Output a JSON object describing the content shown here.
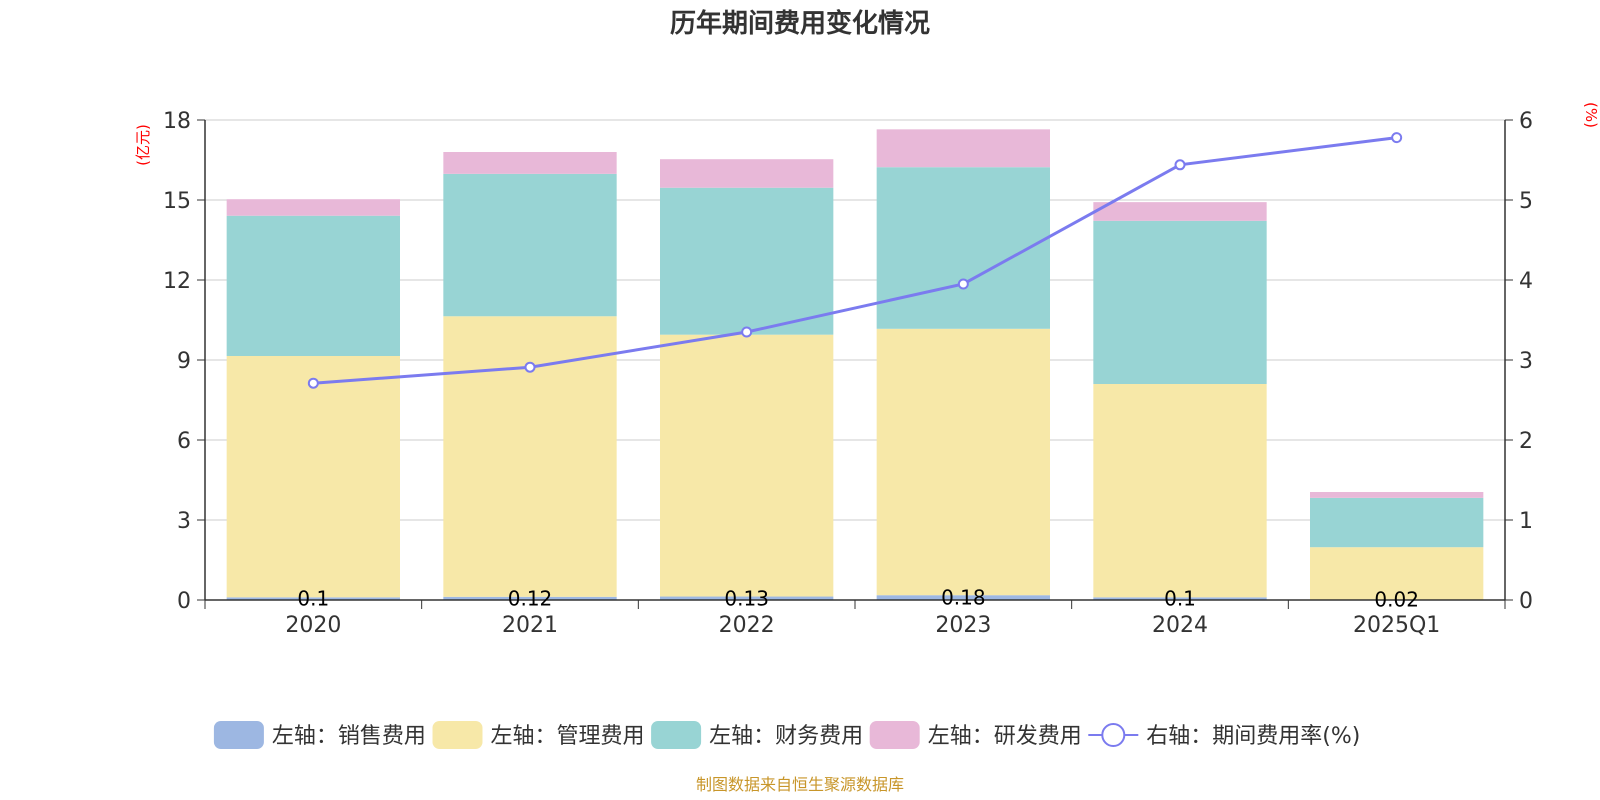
{
  "chart_data": {
    "type": "bar",
    "stacked": true,
    "title": "历年期间费用变化情况",
    "categories": [
      "2020",
      "2021",
      "2022",
      "2023",
      "2024",
      "2025Q1"
    ],
    "left_axis": {
      "unit": "(亿元)",
      "ylim": [
        0,
        18
      ],
      "ticks": [
        "0",
        "3",
        "6",
        "9",
        "12",
        "15",
        "18"
      ]
    },
    "right_axis": {
      "unit": "(%)",
      "ylim": [
        0,
        6
      ],
      "ticks": [
        "0",
        "1",
        "2",
        "3",
        "4",
        "5",
        "6"
      ]
    },
    "series": [
      {
        "name": "左轴：销售费用",
        "axis": "left",
        "color": "#9db7e2",
        "values": [
          0.1,
          0.12,
          0.13,
          0.18,
          0.1,
          0.02
        ],
        "labels": [
          "0.1",
          "0.12",
          "0.13",
          "0.18",
          "0.1",
          "0.02"
        ]
      },
      {
        "name": "左轴：管理费用",
        "axis": "left",
        "color": "#f7e8a8",
        "values": [
          9.05,
          10.52,
          9.82,
          9.99,
          8.0,
          1.96
        ]
      },
      {
        "name": "左轴：财务费用",
        "axis": "left",
        "color": "#98d4d4",
        "values": [
          5.26,
          5.34,
          5.51,
          6.06,
          6.12,
          1.85
        ]
      },
      {
        "name": "左轴：研发费用",
        "axis": "left",
        "color": "#e8b8d8",
        "values": [
          0.62,
          0.82,
          1.07,
          1.42,
          0.7,
          0.22
        ]
      }
    ],
    "line_series": {
      "name": "右轴：期间费用率(%)",
      "axis": "right",
      "color": "#7b7bef",
      "values": [
        2.71,
        2.91,
        3.35,
        3.95,
        5.44,
        5.78
      ]
    },
    "legend_position": "bottom-center",
    "source": "制图数据来自恒生聚源数据库"
  }
}
